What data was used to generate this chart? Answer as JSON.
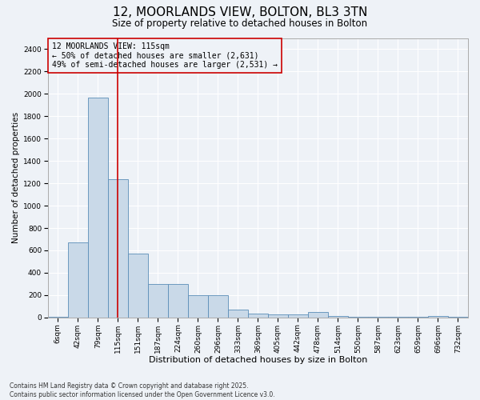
{
  "title": "12, MOORLANDS VIEW, BOLTON, BL3 3TN",
  "subtitle": "Size of property relative to detached houses in Bolton",
  "xlabel": "Distribution of detached houses by size in Bolton",
  "ylabel": "Number of detached properties",
  "categories": [
    "6sqm",
    "42sqm",
    "79sqm",
    "115sqm",
    "151sqm",
    "187sqm",
    "224sqm",
    "260sqm",
    "296sqm",
    "333sqm",
    "369sqm",
    "405sqm",
    "442sqm",
    "478sqm",
    "514sqm",
    "550sqm",
    "587sqm",
    "623sqm",
    "659sqm",
    "696sqm",
    "732sqm"
  ],
  "values": [
    5,
    670,
    1970,
    1240,
    570,
    300,
    300,
    200,
    200,
    70,
    35,
    25,
    25,
    50,
    10,
    5,
    5,
    5,
    5,
    10,
    5
  ],
  "bar_color": "#c9d9e8",
  "bar_edge_color": "#5b8db8",
  "vline_x": 3,
  "vline_color": "#cc0000",
  "annotation_text": "12 MOORLANDS VIEW: 115sqm\n← 50% of detached houses are smaller (2,631)\n49% of semi-detached houses are larger (2,531) →",
  "annotation_box_color": "#cc0000",
  "ylim": [
    0,
    2500
  ],
  "yticks": [
    0,
    200,
    400,
    600,
    800,
    1000,
    1200,
    1400,
    1600,
    1800,
    2000,
    2200,
    2400
  ],
  "bg_color": "#eef2f7",
  "grid_color": "#ffffff",
  "footer": "Contains HM Land Registry data © Crown copyright and database right 2025.\nContains public sector information licensed under the Open Government Licence v3.0.",
  "title_fontsize": 11,
  "subtitle_fontsize": 8.5,
  "annotation_fontsize": 7,
  "xlabel_fontsize": 8,
  "ylabel_fontsize": 7.5,
  "tick_fontsize": 6.5,
  "footer_fontsize": 5.5
}
